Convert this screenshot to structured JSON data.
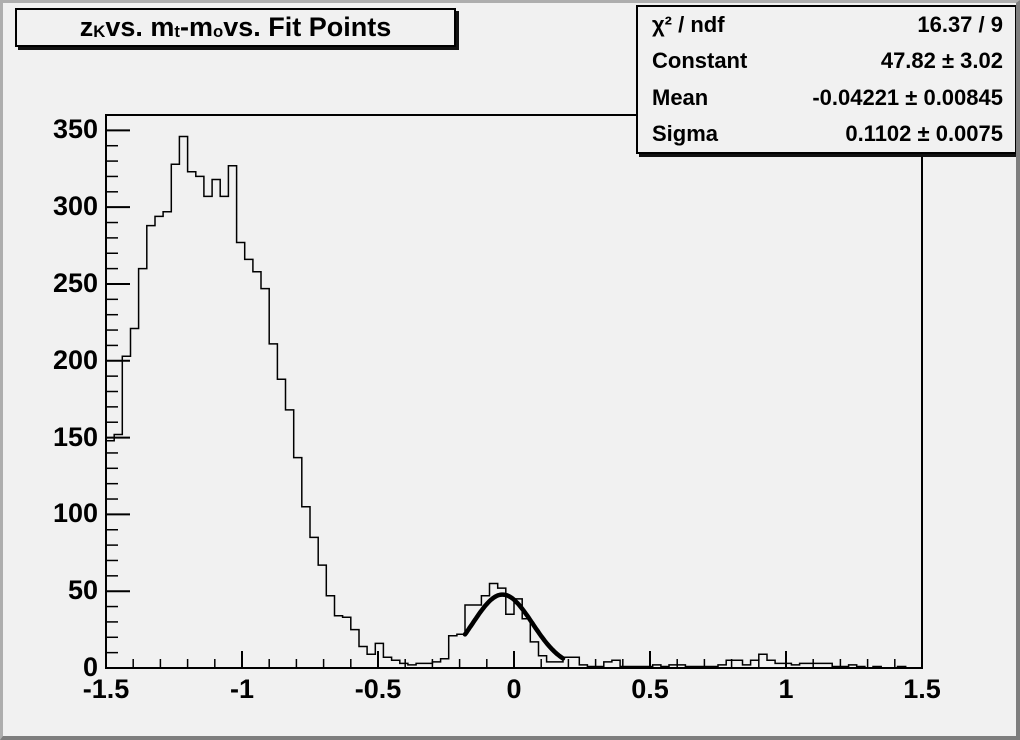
{
  "canvas": {
    "background": "#f1f1f1",
    "line_color": "#000000"
  },
  "title": {
    "plain": "z_K vs. m_t-m_o vs. Fit Points",
    "segments": [
      {
        "text": "z"
      },
      {
        "text": "K",
        "sub": true
      },
      {
        "text": " vs. m"
      },
      {
        "text": "t",
        "sub": true
      },
      {
        "text": "-m"
      },
      {
        "text": "o",
        "sub": true
      },
      {
        "text": " vs. Fit Points"
      }
    ]
  },
  "stats_box": {
    "rows": [
      {
        "label": "χ² / ndf",
        "value": "16.37 / 9"
      },
      {
        "label": "Constant",
        "value": "47.82 ± 3.02"
      },
      {
        "label": "Mean",
        "value": "-0.04221 ± 0.00845"
      },
      {
        "label": "Sigma",
        "value": "0.1102 ± 0.0075"
      }
    ]
  },
  "chart_data": {
    "type": "bar",
    "subtype": "histogram-step-outline",
    "title": "z_K vs. m_t-m_o vs. Fit Points",
    "xlabel": "",
    "ylabel": "",
    "xlim": [
      -1.5,
      1.5
    ],
    "ylim": [
      0,
      360
    ],
    "grid": false,
    "x_ticks": [
      -1.5,
      -1,
      -0.5,
      0,
      0.5,
      1,
      1.5
    ],
    "x_tick_labels": [
      "-1.5",
      "-1",
      "-0.5",
      "0",
      "0.5",
      "1",
      "1.5"
    ],
    "x_minor_step": 0.1,
    "y_ticks": [
      0,
      50,
      100,
      150,
      200,
      250,
      300,
      350
    ],
    "y_tick_labels": [
      "0",
      "50",
      "100",
      "150",
      "200",
      "250",
      "300",
      "350"
    ],
    "y_minor_step": 10,
    "bin_start": -1.5,
    "bin_width": 0.03,
    "values": [
      148,
      152,
      203,
      221,
      260,
      288,
      294,
      297,
      328,
      346,
      323,
      320,
      307,
      318,
      307,
      327,
      277,
      266,
      258,
      247,
      211,
      188,
      168,
      137,
      105,
      85,
      67,
      47,
      34,
      33,
      25,
      14,
      9,
      16,
      7,
      5,
      3,
      2,
      3,
      3,
      4,
      6,
      21,
      22,
      41,
      41,
      47,
      55,
      52,
      35,
      45,
      32,
      17,
      8,
      4,
      4,
      7,
      7,
      2,
      1,
      1,
      4,
      5,
      1,
      1,
      1,
      1,
      2,
      1,
      2,
      2,
      1,
      1,
      1,
      1,
      2,
      5,
      5,
      2,
      5,
      9,
      5,
      3,
      3,
      2,
      3,
      3,
      3,
      3,
      1,
      1,
      2,
      1,
      0,
      1,
      0,
      0,
      1,
      0,
      0
    ],
    "fit": {
      "type": "gaussian",
      "constant": 47.82,
      "mean": -0.04221,
      "sigma": 0.1102,
      "range": [
        -0.18,
        0.18
      ],
      "chi2": 16.37,
      "ndf": 9
    },
    "histogram_color": "#000000",
    "fit_color": "#000000",
    "legend_position": "none"
  }
}
